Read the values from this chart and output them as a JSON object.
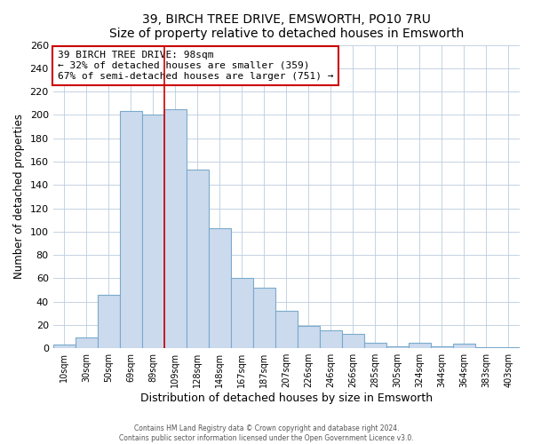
{
  "title": "39, BIRCH TREE DRIVE, EMSWORTH, PO10 7RU",
  "subtitle": "Size of property relative to detached houses in Emsworth",
  "xlabel": "Distribution of detached houses by size in Emsworth",
  "ylabel": "Number of detached properties",
  "bar_labels": [
    "10sqm",
    "30sqm",
    "50sqm",
    "69sqm",
    "89sqm",
    "109sqm",
    "128sqm",
    "148sqm",
    "167sqm",
    "187sqm",
    "207sqm",
    "226sqm",
    "246sqm",
    "266sqm",
    "285sqm",
    "305sqm",
    "324sqm",
    "344sqm",
    "364sqm",
    "383sqm",
    "403sqm"
  ],
  "bar_values": [
    3,
    9,
    46,
    203,
    200,
    205,
    153,
    103,
    60,
    52,
    32,
    19,
    15,
    12,
    5,
    2,
    5,
    2,
    4,
    1,
    1
  ],
  "bar_color": "#ccdaee",
  "bar_edge_color": "#7aaacb",
  "vline_x_index": 4.5,
  "vline_color": "#cc0000",
  "annotation_title": "39 BIRCH TREE DRIVE: 98sqm",
  "annotation_line1": "← 32% of detached houses are smaller (359)",
  "annotation_line2": "67% of semi-detached houses are larger (751) →",
  "annotation_box_color": "#ffffff",
  "annotation_box_edge": "#cc0000",
  "ylim": [
    0,
    260
  ],
  "yticks": [
    0,
    20,
    40,
    60,
    80,
    100,
    120,
    140,
    160,
    180,
    200,
    220,
    240,
    260
  ],
  "footer1": "Contains HM Land Registry data © Crown copyright and database right 2024.",
  "footer2": "Contains public sector information licensed under the Open Government Licence v3.0."
}
